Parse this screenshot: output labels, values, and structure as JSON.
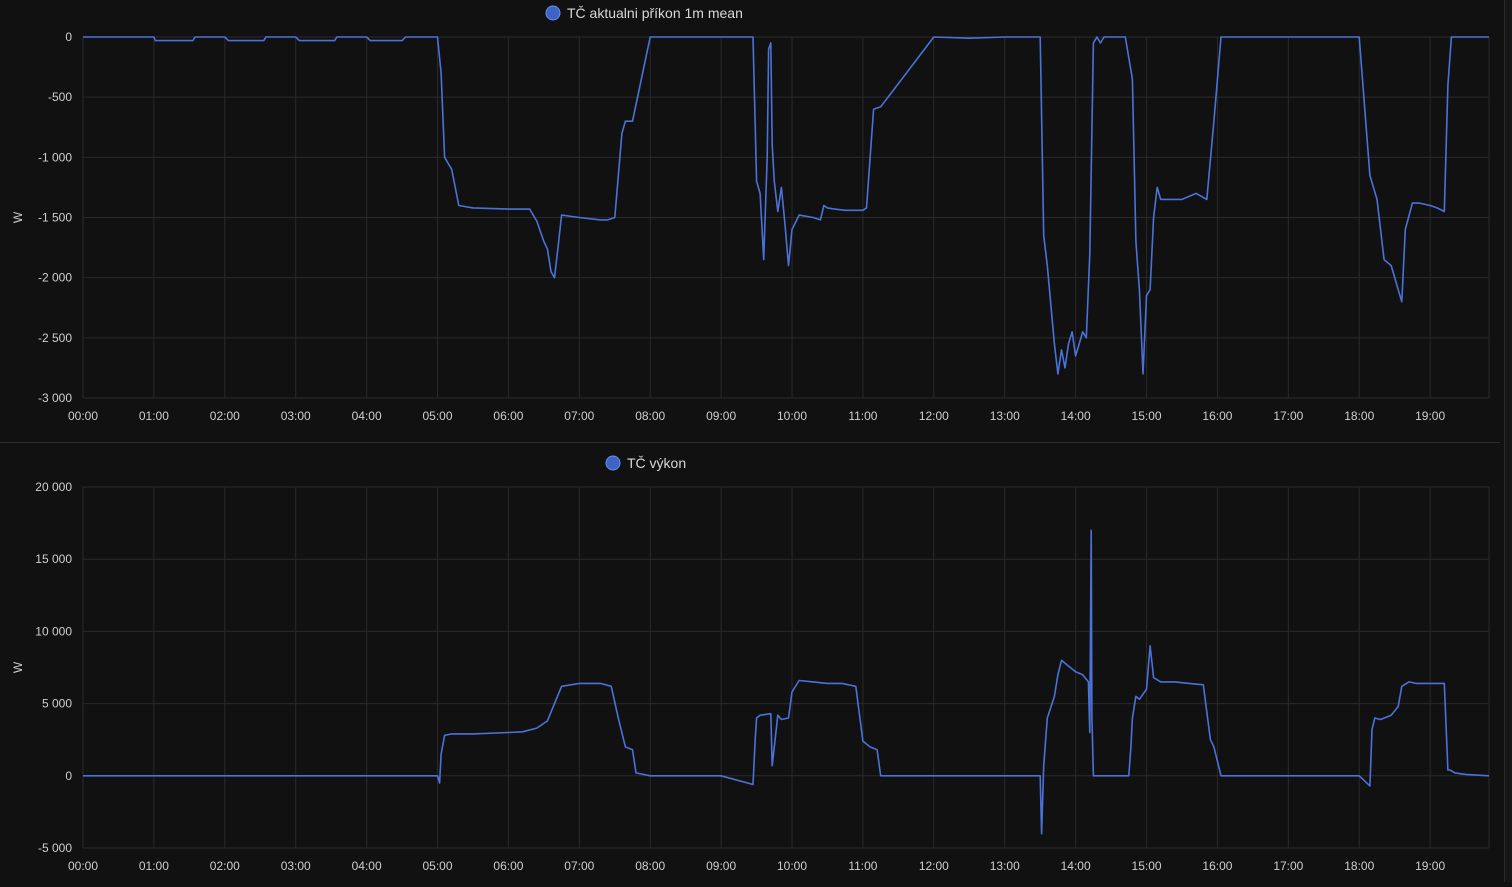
{
  "colors": {
    "background": "#111111",
    "grid": "#2a2a2a",
    "axis_text": "#cfcfcf",
    "legend_text": "#d8d8d8",
    "series_line": "#4b72d8",
    "legend_marker": "#3d63c8"
  },
  "chart_data": [
    {
      "type": "line",
      "legend_position": "top",
      "grid": true,
      "xlabel": "",
      "ylabel": "W",
      "x_ticks": [
        "00:00",
        "01:00",
        "02:00",
        "03:00",
        "04:00",
        "05:00",
        "06:00",
        "07:00",
        "08:00",
        "09:00",
        "10:00",
        "11:00",
        "12:00",
        "13:00",
        "14:00",
        "15:00",
        "16:00",
        "17:00",
        "18:00",
        "19:00"
      ],
      "x_range_hours": [
        0,
        19.83
      ],
      "y_ticks": [
        0,
        -500,
        -1000,
        -1500,
        -2000,
        -2500,
        -3000
      ],
      "y_tick_labels": [
        "0",
        "-500",
        "-1 000",
        "-1 500",
        "-2 000",
        "-2 500",
        "-3 000"
      ],
      "ylim": [
        -3000,
        0
      ],
      "series": [
        {
          "name": "TČ aktualni příkon 1m mean",
          "x_hours": [
            0,
            1.0,
            1.02,
            1.55,
            1.58,
            2.0,
            2.05,
            2.55,
            2.58,
            3.0,
            3.05,
            3.55,
            3.58,
            4.0,
            4.05,
            4.5,
            4.55,
            5.0,
            5.05,
            5.1,
            5.2,
            5.3,
            5.5,
            6.0,
            6.3,
            6.4,
            6.5,
            6.55,
            6.6,
            6.65,
            6.7,
            6.75,
            7.0,
            7.3,
            7.4,
            7.5,
            7.6,
            7.65,
            7.75,
            8.0,
            9.0,
            9.45,
            9.5,
            9.55,
            9.6,
            9.65,
            9.67,
            9.7,
            9.72,
            9.75,
            9.8,
            9.85,
            9.9,
            9.95,
            10.0,
            10.1,
            10.3,
            10.4,
            10.45,
            10.5,
            10.6,
            10.75,
            10.9,
            11.0,
            11.05,
            11.15,
            11.25,
            12.0,
            12.5,
            13.0,
            13.5,
            13.55,
            13.6,
            13.7,
            13.75,
            13.8,
            13.85,
            13.9,
            13.95,
            14.0,
            14.05,
            14.1,
            14.15,
            14.2,
            14.25,
            14.3,
            14.35,
            14.4,
            14.5,
            14.7,
            14.8,
            14.85,
            14.9,
            14.95,
            15.0,
            15.05,
            15.1,
            15.15,
            15.2,
            15.5,
            15.7,
            15.85,
            15.95,
            16.05,
            16.5,
            17.0,
            17.5,
            18.0,
            18.15,
            18.25,
            18.35,
            18.45,
            18.55,
            18.6,
            18.65,
            18.75,
            18.85,
            19.0,
            19.1,
            19.2,
            19.25,
            19.3,
            19.5,
            19.83
          ],
          "values": [
            0,
            0,
            -30,
            -30,
            0,
            0,
            -30,
            -30,
            0,
            0,
            -30,
            -30,
            0,
            0,
            -30,
            -30,
            0,
            0,
            -300,
            -1000,
            -1100,
            -1400,
            -1420,
            -1430,
            -1430,
            -1530,
            -1700,
            -1760,
            -1950,
            -2000,
            -1750,
            -1480,
            -1500,
            -1520,
            -1520,
            -1500,
            -800,
            -700,
            -700,
            0,
            0,
            0,
            -1200,
            -1300,
            -1850,
            -1000,
            -100,
            -50,
            -900,
            -1200,
            -1450,
            -1250,
            -1550,
            -1900,
            -1600,
            -1480,
            -1500,
            -1520,
            -1400,
            -1420,
            -1430,
            -1440,
            -1440,
            -1440,
            -1420,
            -600,
            -580,
            0,
            -10,
            0,
            0,
            -1650,
            -1900,
            -2550,
            -2800,
            -2600,
            -2750,
            -2550,
            -2450,
            -2650,
            -2550,
            -2450,
            -2500,
            -1800,
            -50,
            0,
            -50,
            0,
            0,
            0,
            -350,
            -1700,
            -2100,
            -2800,
            -2150,
            -2100,
            -1500,
            -1250,
            -1350,
            -1350,
            -1300,
            -1350,
            -700,
            0,
            0,
            0,
            0,
            0,
            -1150,
            -1350,
            -1850,
            -1900,
            -2100,
            -2200,
            -1600,
            -1380,
            -1380,
            -1400,
            -1420,
            -1450,
            -400,
            0,
            0,
            0
          ]
        }
      ]
    },
    {
      "type": "line",
      "legend_position": "top",
      "grid": true,
      "xlabel": "",
      "ylabel": "W",
      "x_ticks": [
        "00:00",
        "01:00",
        "02:00",
        "03:00",
        "04:00",
        "05:00",
        "06:00",
        "07:00",
        "08:00",
        "09:00",
        "10:00",
        "11:00",
        "12:00",
        "13:00",
        "14:00",
        "15:00",
        "16:00",
        "17:00",
        "18:00",
        "19:00"
      ],
      "x_range_hours": [
        0,
        19.83
      ],
      "y_ticks": [
        20000,
        15000,
        10000,
        5000,
        0,
        -5000
      ],
      "y_tick_labels": [
        "20 000",
        "15 000",
        "10 000",
        "5 000",
        "0",
        "-5 000"
      ],
      "ylim": [
        -5000,
        20000
      ],
      "series": [
        {
          "name": "TČ výkon",
          "x_hours": [
            0,
            5.0,
            5.03,
            5.05,
            5.1,
            5.2,
            5.5,
            6.0,
            6.2,
            6.4,
            6.55,
            6.65,
            6.75,
            7.0,
            7.3,
            7.45,
            7.55,
            7.65,
            7.75,
            7.8,
            8.0,
            9.0,
            9.45,
            9.48,
            9.5,
            9.55,
            9.7,
            9.72,
            9.75,
            9.8,
            9.85,
            9.95,
            10.0,
            10.1,
            10.3,
            10.5,
            10.7,
            10.9,
            11.0,
            11.1,
            11.2,
            11.25,
            11.5,
            12.0,
            12.5,
            13.0,
            13.5,
            13.52,
            13.55,
            13.6,
            13.7,
            13.75,
            13.8,
            13.9,
            14.0,
            14.1,
            14.18,
            14.2,
            14.22,
            14.23,
            14.25,
            14.5,
            14.75,
            14.78,
            14.8,
            14.85,
            14.9,
            15.0,
            15.05,
            15.1,
            15.2,
            15.4,
            15.6,
            15.8,
            15.9,
            15.95,
            16.05,
            16.5,
            17.0,
            17.5,
            18.0,
            18.15,
            18.18,
            18.22,
            18.3,
            18.45,
            18.55,
            18.6,
            18.7,
            18.8,
            19.0,
            19.2,
            19.25,
            19.28,
            19.35,
            19.5,
            19.83
          ],
          "values": [
            0,
            0,
            -500,
            1500,
            2800,
            2900,
            2900,
            3000,
            3050,
            3300,
            3800,
            5000,
            6200,
            6400,
            6400,
            6200,
            4000,
            2000,
            1800,
            200,
            0,
            0,
            -600,
            2500,
            4000,
            4200,
            4300,
            700,
            2000,
            4200,
            3900,
            4000,
            5800,
            6600,
            6500,
            6400,
            6400,
            6200,
            2400,
            2000,
            1800,
            0,
            0,
            0,
            0,
            0,
            0,
            -4000,
            700,
            4000,
            5500,
            7000,
            8000,
            7600,
            7200,
            7000,
            6500,
            3000,
            17000,
            4000,
            0,
            0,
            0,
            2000,
            4000,
            5500,
            5300,
            6000,
            9000,
            6800,
            6500,
            6500,
            6400,
            6300,
            2500,
            2000,
            0,
            0,
            0,
            0,
            0,
            -700,
            3200,
            4000,
            3900,
            4200,
            4800,
            6200,
            6500,
            6400,
            6400,
            6400,
            400,
            400,
            200,
            100,
            0
          ]
        }
      ]
    }
  ]
}
